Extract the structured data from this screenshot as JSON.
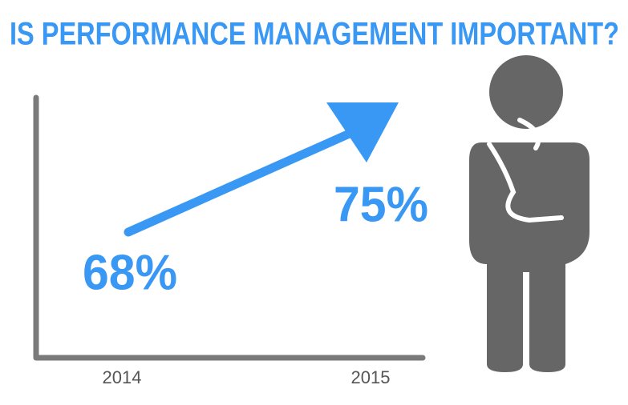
{
  "chart_data": {
    "type": "line",
    "title": "IS PERFORMANCE MANAGEMENT IMPORTANT?",
    "categories": [
      "2014",
      "2015"
    ],
    "values": [
      68,
      75
    ],
    "value_labels": [
      "68%",
      "75%"
    ],
    "color": "#3a98f5",
    "axis_color": "#7a7a7a"
  }
}
